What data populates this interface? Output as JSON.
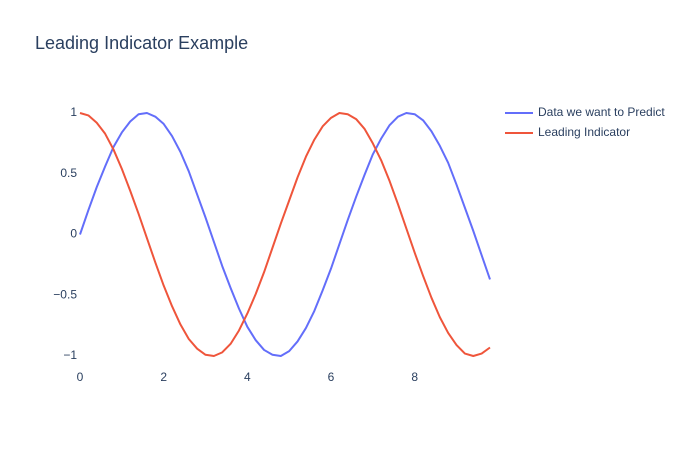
{
  "chart_data": {
    "type": "line",
    "title": "Leading Indicator Example",
    "x": [
      0,
      0.2,
      0.4,
      0.6,
      0.8,
      1.0,
      1.2,
      1.4,
      1.6,
      1.8,
      2.0,
      2.2,
      2.4,
      2.6,
      2.8,
      3.0,
      3.2,
      3.4,
      3.6,
      3.8,
      4.0,
      4.2,
      4.4,
      4.6,
      4.8,
      5.0,
      5.2,
      5.4,
      5.6,
      5.8,
      6.0,
      6.2,
      6.4,
      6.6,
      6.8,
      7.0,
      7.2,
      7.4,
      7.6,
      7.8,
      8.0,
      8.2,
      8.4,
      8.6,
      8.8,
      9.0,
      9.2,
      9.4,
      9.6,
      9.8
    ],
    "series": [
      {
        "name": "Data we want to Predict",
        "color": "#636efa",
        "values": [
          0,
          0.2,
          0.39,
          0.56,
          0.72,
          0.84,
          0.93,
          0.99,
          1.0,
          0.97,
          0.91,
          0.81,
          0.68,
          0.52,
          0.33,
          0.14,
          -0.06,
          -0.26,
          -0.44,
          -0.61,
          -0.76,
          -0.87,
          -0.95,
          -0.99,
          -1.0,
          -0.96,
          -0.88,
          -0.77,
          -0.63,
          -0.46,
          -0.28,
          -0.08,
          0.12,
          0.31,
          0.49,
          0.66,
          0.79,
          0.9,
          0.97,
          1.0,
          0.99,
          0.94,
          0.85,
          0.73,
          0.59,
          0.41,
          0.22,
          0.03,
          -0.17,
          -0.37
        ]
      },
      {
        "name": "Leading Indicator",
        "color": "#EF553B",
        "values": [
          1,
          0.98,
          0.92,
          0.83,
          0.7,
          0.54,
          0.36,
          0.17,
          -0.03,
          -0.23,
          -0.42,
          -0.59,
          -0.74,
          -0.86,
          -0.94,
          -0.99,
          -1.0,
          -0.97,
          -0.9,
          -0.79,
          -0.65,
          -0.49,
          -0.31,
          -0.11,
          0.09,
          0.28,
          0.47,
          0.64,
          0.78,
          0.89,
          0.96,
          1.0,
          0.99,
          0.95,
          0.87,
          0.75,
          0.61,
          0.44,
          0.25,
          0.05,
          -0.15,
          -0.34,
          -0.52,
          -0.68,
          -0.81,
          -0.91,
          -0.98,
          -1.0,
          -0.98,
          -0.93
        ]
      }
    ],
    "xlim": [
      0,
      9.8
    ],
    "xticks": [
      0,
      2,
      4,
      6,
      8
    ],
    "ylim": [
      -1,
      1
    ],
    "yticks": [
      {
        "value": -1,
        "label": "−1"
      },
      {
        "value": -0.5,
        "label": "−0.5"
      },
      0,
      0.5,
      1
    ],
    "grid": false
  }
}
